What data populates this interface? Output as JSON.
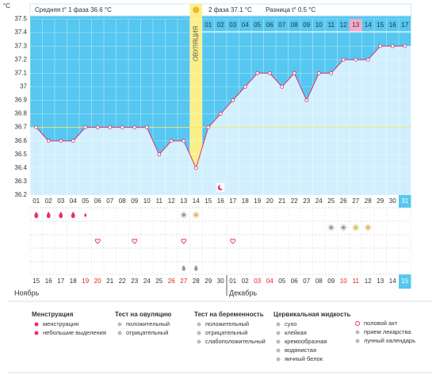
{
  "chart_data": {
    "type": "line",
    "y_label": "°C",
    "header": {
      "phase1": "Средняя t° 1 фаза 36.6 °C",
      "phase2": "2 фаза 37.1 °C",
      "diff": "Разница t° 0.5 °C",
      "ovulation": "ОВУЛЯЦИЯ"
    },
    "categories": [
      "01",
      "02",
      "03",
      "04",
      "05",
      "06",
      "07",
      "08",
      "09",
      "10",
      "11",
      "12",
      "13",
      "14",
      "15",
      "16",
      "17",
      "18",
      "19",
      "20",
      "21",
      "22",
      "23",
      "24",
      "25",
      "26",
      "27",
      "28",
      "29",
      "30",
      "31"
    ],
    "phase2_days": [
      "01",
      "02",
      "03",
      "04",
      "05",
      "06",
      "07",
      "08",
      "09",
      "10",
      "11",
      "12",
      "13",
      "14",
      "15",
      "16",
      "17"
    ],
    "dates": [
      "15",
      "16",
      "17",
      "18",
      "19",
      "20",
      "21",
      "22",
      "23",
      "24",
      "25",
      "26",
      "27",
      "28",
      "29",
      "30",
      "01",
      "02",
      "03",
      "04",
      "05",
      "06",
      "07",
      "08",
      "09",
      "10",
      "11",
      "12",
      "13",
      "14",
      "15"
    ],
    "months": [
      "Ноябрь",
      "Декабрь"
    ],
    "series": [
      {
        "name": "t°",
        "color": "#e0306a",
        "values": [
          36.7,
          36.6,
          36.6,
          36.6,
          36.7,
          36.7,
          36.7,
          36.7,
          36.7,
          36.7,
          36.5,
          36.6,
          36.6,
          36.4,
          36.7,
          36.8,
          36.9,
          37.0,
          37.1,
          37.1,
          37.0,
          37.1,
          36.9,
          37.1,
          37.1,
          37.2,
          37.2,
          37.2,
          37.3,
          37.3,
          37.3
        ]
      }
    ],
    "ylim": [
      36.2,
      37.5
    ],
    "yticks": [
      36.2,
      36.3,
      36.4,
      36.5,
      36.6,
      36.7,
      36.8,
      36.9,
      37,
      37.1,
      37.2,
      37.3,
      37.4,
      37.5
    ],
    "coverline": 36.7,
    "ovulation_day": 14,
    "pink_day": 27,
    "today": 31,
    "month_break": 17,
    "red_dates": [
      5,
      6,
      12,
      13,
      19,
      20,
      26,
      27
    ],
    "markers": {
      "menstruation": [
        1,
        2,
        3,
        4
      ],
      "spotting": [
        5
      ],
      "ov_negative": [
        13
      ],
      "ov_positive": [
        14
      ],
      "preg_negative": [
        25,
        26
      ],
      "preg_positive": [
        27,
        28
      ],
      "sex": [
        6,
        9,
        13,
        17
      ],
      "eggwhite": [
        13,
        14
      ],
      "moon": [
        16
      ]
    },
    "legend": [
      {
        "title": "Менструация",
        "items": [
          "менструация",
          "небольшие выделения"
        ]
      },
      {
        "title": "Тест на овуляцию",
        "items": [
          "положительный",
          "отрицательный"
        ]
      },
      {
        "title": "Тест на беременность",
        "items": [
          "положительный",
          "отрицательный",
          "слабоположительный"
        ]
      },
      {
        "title": "Цервикальная жидкость",
        "items": [
          "сухо",
          "клейкая",
          "кремообразная",
          "водянистая",
          "яичный белок"
        ]
      },
      {
        "title": null,
        "items": [
          "половой акт",
          "прием лекарства",
          "лунный календарь"
        ]
      }
    ]
  }
}
